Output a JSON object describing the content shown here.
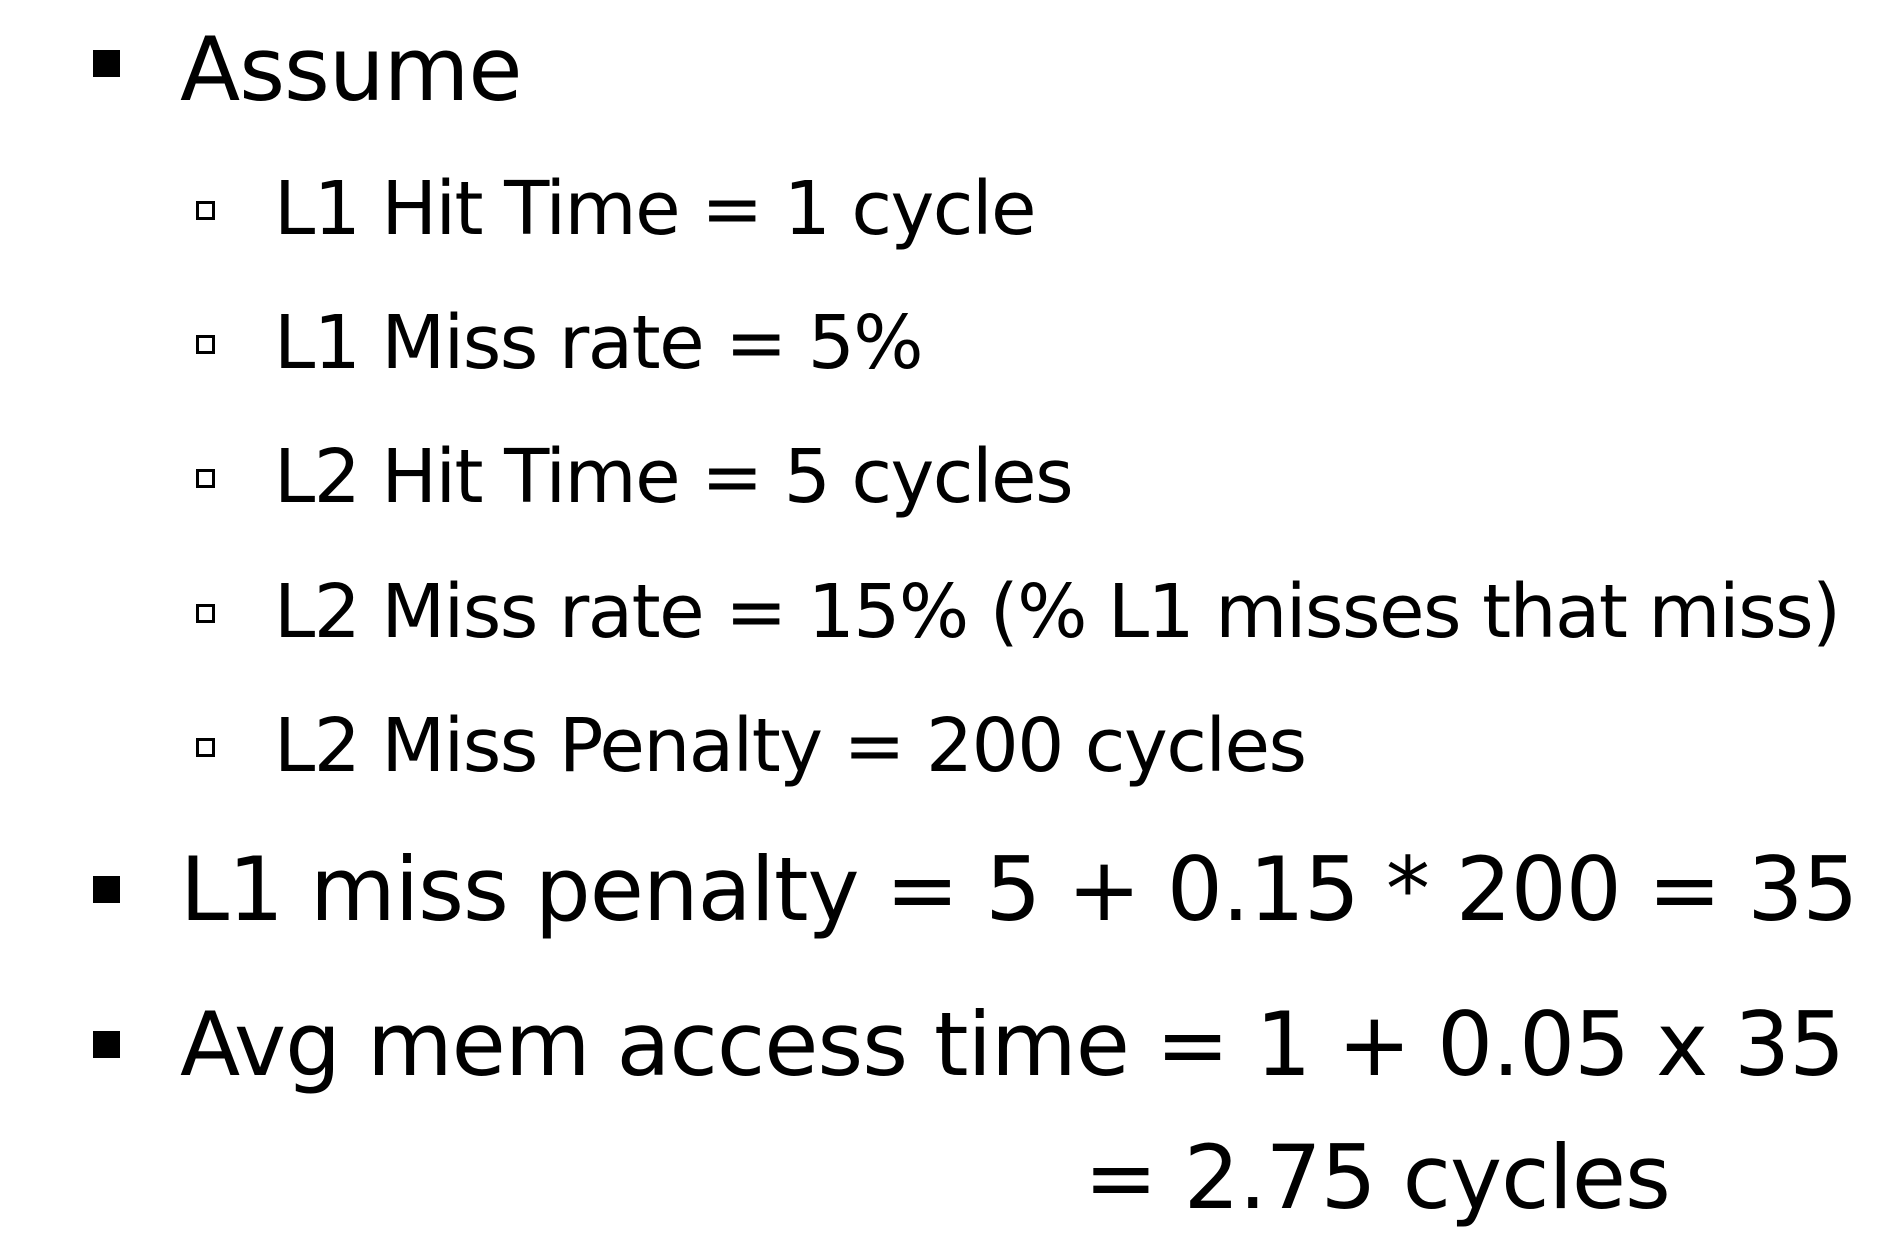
{
  "slide": {
    "items": [
      {
        "text": "Assume",
        "level": 1,
        "children": [
          {
            "text": "L1 Hit Time = 1 cycle",
            "level": 2
          },
          {
            "text": "L1 Miss rate = 5%",
            "level": 2
          },
          {
            "text": "L2 Hit Time = 5 cycles",
            "level": 2
          },
          {
            "text": "L2 Miss rate = 15%  (% L1 misses that miss)",
            "level": 2
          },
          {
            "text": "L2 Miss Penalty = 200 cycles",
            "level": 2
          }
        ]
      },
      {
        "text": "L1 miss penalty = 5 + 0.15 * 200 = 35",
        "level": 1
      },
      {
        "text": "Avg mem access time = 1 + 0.05 x 35",
        "level": 1,
        "continuation": "= 2.75 cycles"
      }
    ]
  }
}
